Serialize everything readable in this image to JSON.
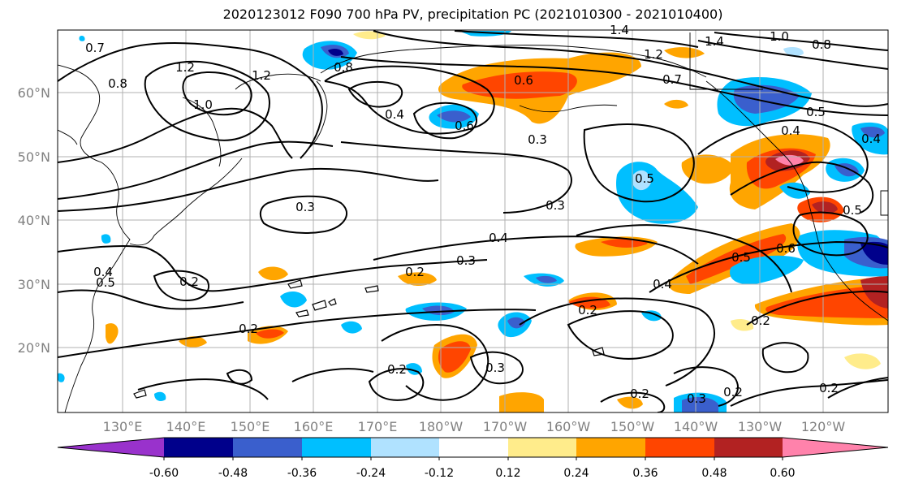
{
  "title": "2020123012 F090 700 hPa PV, precipitation PC (2021010300 - 2021010400)",
  "lon_ticks": [
    "130°E",
    "140°E",
    "150°E",
    "160°E",
    "170°E",
    "180°W",
    "170°W",
    "160°W",
    "150°W",
    "140°W",
    "130°W",
    "120°W"
  ],
  "lat_ticks": [
    "60°N",
    "50°N",
    "40°N",
    "30°N",
    "20°N"
  ],
  "colorbar": {
    "colors": [
      "#9932cc",
      "#00008b",
      "#3a5fcd",
      "#00bfff",
      "#b0e2ff",
      "#ffffff",
      "#ffec8b",
      "#ffa500",
      "#ff4500",
      "#b22222",
      "#ff82ab"
    ],
    "tick_labels": [
      "-0.60",
      "-0.48",
      "-0.36",
      "-0.24",
      "-0.12",
      "0.12",
      "0.24",
      "0.36",
      "0.48",
      "0.60"
    ]
  },
  "contour_labels": [
    "0.7",
    "0.8",
    "1.2",
    "1.2",
    "1.0",
    "0.8",
    "1.4",
    "1.4",
    "1.2",
    "0.7",
    "1.0",
    "0.8",
    "0.6",
    "0.4",
    "0.6",
    "0.3",
    "0.3",
    "0.3",
    "0.4",
    "0.3",
    "0.2",
    "0.2",
    "0.2",
    "0.3",
    "0.2",
    "0.2",
    "0.4",
    "0.5",
    "0.6",
    "0.5",
    "0.4",
    "0.2",
    "0.2",
    "0.2",
    "0.3",
    "0.2",
    "0.5",
    "0.5",
    "0.4",
    "0.5",
    "0.4"
  ]
}
